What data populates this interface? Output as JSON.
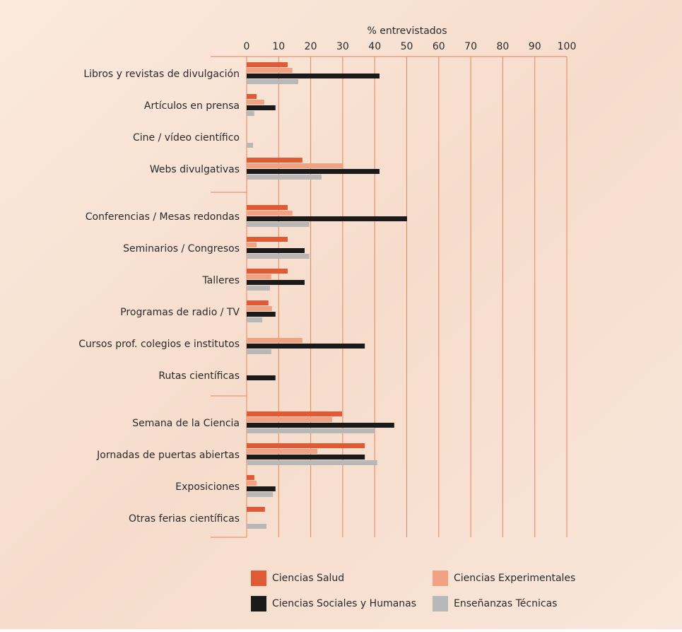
{
  "chart_data": {
    "type": "bar",
    "orientation": "horizontal",
    "x_label": "% entrevistados",
    "categories": [
      "Libros y revistas de divulgación",
      "Artículos en prensa",
      "Cine / vídeo científico",
      "Webs divulgativas",
      "Conferencias / Mesas redondas",
      "Seminarios / Congresos",
      "Talleres",
      "Programas de radio / TV",
      "Cursos prof. colegios e institutos",
      "Rutas científicas",
      "Semana de la Ciencia",
      "Jornadas de puertas abiertas",
      "Exposiciones",
      "Otras ferias científicas"
    ],
    "series": [
      {
        "name": "Ciencias Salud",
        "color": "#e05a35",
        "values": [
          12.8,
          3.1,
          0,
          17.4,
          12.8,
          12.8,
          12.8,
          6.8,
          0,
          0,
          29.8,
          36.9,
          2.4,
          5.7
        ]
      },
      {
        "name": "Ciencias Experimentales",
        "color": "#f0a283",
        "values": [
          14.3,
          5.5,
          0,
          30.2,
          14.3,
          3.1,
          7.7,
          7.9,
          17.4,
          0,
          26.7,
          22.1,
          3.1,
          0
        ]
      },
      {
        "name": "Ciencias Sociales y Humanas",
        "color": "#1a1a1a",
        "values": [
          41.5,
          9,
          0,
          41.5,
          50.1,
          18.1,
          18.1,
          9,
          36.9,
          9,
          46.1,
          36.9,
          9,
          0
        ]
      },
      {
        "name": "Enseñanzas Técnicas",
        "color": "#b8b8b8",
        "values": [
          16.1,
          2.4,
          2,
          23.4,
          19.6,
          19.6,
          7.3,
          4.9,
          7.7,
          0,
          40,
          40.8,
          8.2,
          6.2
        ]
      }
    ],
    "xlim": [
      0,
      100
    ],
    "xticks": [
      0,
      10,
      20,
      30,
      40,
      50,
      60,
      70,
      80,
      90,
      100
    ],
    "grid": true
  }
}
